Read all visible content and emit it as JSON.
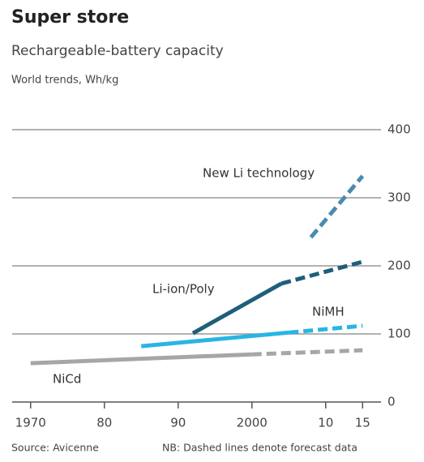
{
  "chart_data": {
    "type": "line",
    "title": "Super store",
    "subtitle": "Rechargeable-battery capacity",
    "unit_note": "World trends, Wh/kg",
    "source": "Source: Avicenne",
    "note": "NB: Dashed lines denote forecast data",
    "xlim": [
      1967.5,
      2017.5
    ],
    "xticks": [
      1970,
      {
        "value": 1980,
        "label": "80"
      },
      {
        "value": 1990,
        "label": "90"
      },
      2000,
      {
        "value": 2010,
        "label": "10"
      },
      {
        "value": 2015,
        "label": "15"
      }
    ],
    "ylim": [
      0,
      400
    ],
    "yticks": [
      0,
      100,
      200,
      300,
      400
    ],
    "grid": true,
    "series": [
      {
        "name": "NiCd",
        "color": "#a6a6a6",
        "x": [
          1970,
          2000,
          2015
        ],
        "values": [
          57,
          70,
          76
        ],
        "forecast_from": 2000
      },
      {
        "name": "NiMH",
        "color": "#29b5e3",
        "x": [
          1985,
          2005,
          2015
        ],
        "values": [
          82,
          102,
          112
        ],
        "forecast_from": 2005
      },
      {
        "name": "Li-ion/Poly",
        "color": "#1e5f7a",
        "x": [
          1992,
          2004,
          2015
        ],
        "values": [
          101,
          174,
          206
        ],
        "forecast_from": 2004
      },
      {
        "name": "New Li technology",
        "color": "#4a8bb0",
        "x": [
          2008,
          2015
        ],
        "values": [
          242,
          332
        ],
        "forecast_from": 2008
      }
    ]
  }
}
